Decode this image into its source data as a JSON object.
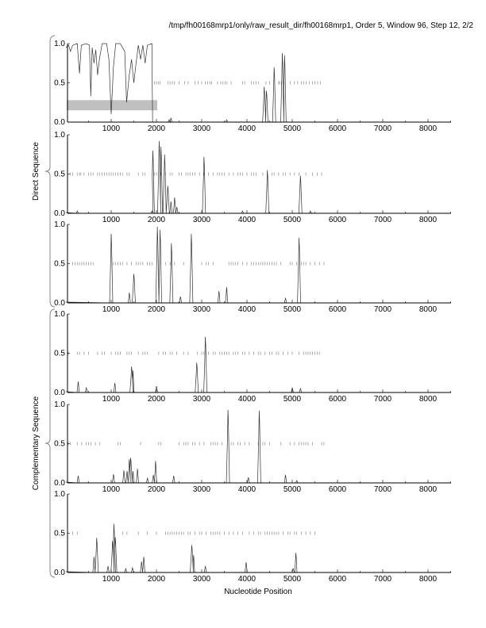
{
  "chart_data": {
    "type": "line",
    "title": "/tmp/fh00168mrp1/only/raw_result_dir/fh00168mrp1, Order 5, Window 96, Step 12, 2/2",
    "xlabel": "Nucleotide Position",
    "xlim": [
      0,
      8500
    ],
    "ylim": [
      0,
      1
    ],
    "x_ticks": [
      1000,
      2000,
      3000,
      4000,
      5000,
      6000,
      7000,
      8000
    ],
    "x_tick_labels": [
      "1000",
      "2000",
      "3000",
      "4000",
      "5000",
      "6000",
      "7000",
      "8000"
    ],
    "y_ticks": [
      0,
      0.5,
      1
    ],
    "y_tick_labels": [
      "0.0",
      "0.5",
      "1.0"
    ],
    "group_labels": [
      "Direct Sequence",
      "Complementary Sequence"
    ],
    "panels": [
      {
        "group": "Direct Sequence",
        "frame": 1,
        "profile": [
          [
            0,
            0.95
          ],
          [
            60,
            0.98
          ],
          [
            100,
            0.9
          ],
          [
            150,
            0.98
          ],
          [
            250,
            1.0
          ],
          [
            300,
            0.62
          ],
          [
            340,
            0.98
          ],
          [
            450,
            1.0
          ],
          [
            520,
            0.98
          ],
          [
            550,
            0.33
          ],
          [
            580,
            0.95
          ],
          [
            620,
            0.75
          ],
          [
            660,
            0.92
          ],
          [
            700,
            0.6
          ],
          [
            740,
            0.8
          ],
          [
            800,
            1.0
          ],
          [
            900,
            1.0
          ],
          [
            950,
            0.8
          ],
          [
            1000,
            0.1
          ],
          [
            1050,
            0.7
          ],
          [
            1100,
            1.0
          ],
          [
            1200,
            1.0
          ],
          [
            1300,
            0.9
          ],
          [
            1340,
            0.25
          ],
          [
            1400,
            0.6
          ],
          [
            1450,
            0.8
          ],
          [
            1500,
            0.5
          ],
          [
            1550,
            0.75
          ],
          [
            1600,
            0.98
          ],
          [
            1650,
            0.8
          ],
          [
            1700,
            0.98
          ],
          [
            1750,
            0.75
          ],
          [
            1800,
            0.98
          ],
          [
            1900,
            1.0
          ],
          [
            1915,
            0.0
          ]
        ],
        "peaks": [
          [
            2280,
            0.03
          ],
          [
            2320,
            0.05
          ],
          [
            3550,
            0.03
          ],
          [
            4380,
            0.45
          ],
          [
            4430,
            0.4
          ],
          [
            4600,
            0.7
          ],
          [
            4780,
            0.88
          ],
          [
            4830,
            0.85
          ]
        ],
        "start_marks": [
          1960,
          2000,
          2040,
          2080,
          2250,
          2300,
          2350,
          2400,
          2500,
          2620,
          2700,
          2850,
          2920,
          3000,
          3080,
          3130,
          3180,
          3220,
          3350,
          3420,
          3470,
          3520,
          3560,
          3650,
          3900,
          3950,
          4100,
          4150,
          4200,
          4260,
          4420,
          4500,
          4700,
          4720,
          4760,
          4820,
          4960,
          5050,
          5120,
          5200,
          5250,
          5310,
          5380,
          5450,
          5500,
          5560,
          5620
        ],
        "gene_bars": [
          [
            0,
            2000
          ]
        ]
      },
      {
        "group": "Direct Sequence",
        "frame": 2,
        "peaks": [
          [
            250,
            0.03
          ],
          [
            1900,
            0.03
          ],
          [
            1920,
            0.8
          ],
          [
            2060,
            0.92
          ],
          [
            2100,
            0.85
          ],
          [
            2180,
            0.75
          ],
          [
            2250,
            0.35
          ],
          [
            2320,
            0.15
          ],
          [
            2400,
            0.2
          ],
          [
            2450,
            0.08
          ],
          [
            3050,
            0.72
          ],
          [
            3900,
            0.03
          ],
          [
            4450,
            0.55
          ],
          [
            5180,
            0.48
          ],
          [
            5400,
            0.03
          ]
        ],
        "start_marks": [
          100,
          150,
          250,
          300,
          330,
          400,
          500,
          550,
          600,
          700,
          750,
          800,
          850,
          900,
          950,
          1000,
          1050,
          1100,
          1150,
          1200,
          1250,
          1350,
          1400,
          1600,
          1700,
          1750,
          1950,
          2000,
          2100,
          2200,
          2300,
          2350,
          2500,
          2550,
          2650,
          2700,
          2750,
          2800,
          2850,
          2950,
          3050,
          3150,
          3250,
          3350,
          3400,
          3450,
          3500,
          3600,
          3700,
          3800,
          3850,
          3900,
          4000,
          4100,
          4150,
          4200,
          4350,
          4450,
          4550,
          4600,
          4700,
          4800,
          4850,
          4950,
          5050,
          5150,
          5300,
          5450,
          5550,
          5650
        ]
      },
      {
        "group": "Direct Sequence",
        "frame": 3,
        "peaks": [
          [
            1000,
            0.88
          ],
          [
            1400,
            0.13
          ],
          [
            1500,
            0.37
          ],
          [
            2020,
            0.97
          ],
          [
            2080,
            0.93
          ],
          [
            2330,
            0.76
          ],
          [
            2530,
            0.08
          ],
          [
            2770,
            0.88
          ],
          [
            3380,
            0.15
          ],
          [
            3550,
            0.2
          ],
          [
            4850,
            0.06
          ],
          [
            5150,
            0.83
          ]
        ],
        "start_marks": [
          150,
          200,
          250,
          300,
          350,
          400,
          450,
          500,
          550,
          600,
          1050,
          1100,
          1150,
          1200,
          1250,
          1350,
          1450,
          1550,
          1600,
          1650,
          1700,
          1800,
          1850,
          1900,
          2100,
          2200,
          2300,
          2400,
          2600,
          3000,
          3100,
          3150,
          3250,
          3600,
          3650,
          3700,
          3750,
          3800,
          3900,
          4000,
          4100,
          4150,
          4200,
          4250,
          4300,
          4350,
          4400,
          4450,
          4500,
          4550,
          4600,
          4650,
          4750,
          4950,
          5000,
          5100,
          5200,
          5250,
          5300,
          5400,
          5500,
          5600,
          5700
        ]
      },
      {
        "group": "Complementary Sequence",
        "frame": 1,
        "peaks": [
          [
            270,
            0.14
          ],
          [
            450,
            0.06
          ],
          [
            1080,
            0.12
          ],
          [
            1450,
            0.33
          ],
          [
            1480,
            0.28
          ],
          [
            2000,
            0.08
          ],
          [
            2890,
            0.38
          ],
          [
            3080,
            0.71
          ],
          [
            5000,
            0.06
          ],
          [
            5180,
            0.05
          ]
        ],
        "start_marks": [
          50,
          250,
          300,
          400,
          500,
          700,
          800,
          850,
          1000,
          1100,
          1150,
          1200,
          1350,
          1400,
          1450,
          1600,
          1700,
          1750,
          1800,
          2050,
          2150,
          2200,
          2300,
          2350,
          2450,
          2600,
          2700,
          2900,
          3000,
          3050,
          3150,
          3250,
          3300,
          3400,
          3450,
          3500,
          3550,
          3600,
          3700,
          3750,
          3800,
          3900,
          3950,
          4050,
          4150,
          4250,
          4300,
          4400,
          4500,
          4550,
          4650,
          4700,
          4800,
          4900,
          5000,
          5150,
          5250,
          5300,
          5350,
          5400,
          5450,
          5500,
          5550,
          5600
        ]
      },
      {
        "group": "Complementary Sequence",
        "frame": 2,
        "peaks": [
          [
            270,
            0.09
          ],
          [
            1050,
            0.11
          ],
          [
            1280,
            0.16
          ],
          [
            1350,
            0.15
          ],
          [
            1400,
            0.3
          ],
          [
            1430,
            0.32
          ],
          [
            1480,
            0.15
          ],
          [
            1580,
            0.18
          ],
          [
            1800,
            0.06
          ],
          [
            1930,
            0.1
          ],
          [
            1980,
            0.28
          ],
          [
            2380,
            0.09
          ],
          [
            3580,
            0.93
          ],
          [
            4030,
            0.07
          ],
          [
            4270,
            0.92
          ],
          [
            4850,
            0.1
          ],
          [
            5100,
            0.03
          ]
        ],
        "start_marks": [
          50,
          100,
          250,
          350,
          450,
          500,
          550,
          650,
          750,
          1150,
          1200,
          1650,
          2050,
          2100,
          2500,
          2600,
          2650,
          2700,
          2800,
          2850,
          2950,
          3050,
          3200,
          3250,
          3300,
          3350,
          3450,
          3650,
          3700,
          3800,
          3850,
          3950,
          4050,
          4250,
          4350,
          4400,
          4500,
          4750,
          4950,
          5050,
          5150,
          5200,
          5250,
          5300,
          5350,
          5450,
          5650,
          5700
        ]
      },
      {
        "group": "Complementary Sequence",
        "frame": 3,
        "peaks": [
          [
            620,
            0.2
          ],
          [
            680,
            0.44
          ],
          [
            930,
            0.08
          ],
          [
            1030,
            0.4
          ],
          [
            1060,
            0.62
          ],
          [
            1090,
            0.45
          ],
          [
            1320,
            0.05
          ],
          [
            1470,
            0.06
          ],
          [
            1670,
            0.14
          ],
          [
            1720,
            0.2
          ],
          [
            2780,
            0.35
          ],
          [
            2820,
            0.22
          ],
          [
            3080,
            0.08
          ],
          [
            3980,
            0.13
          ],
          [
            5020,
            0.05
          ],
          [
            5080,
            0.25
          ]
        ],
        "start_marks": [
          150,
          250,
          1250,
          1350,
          1600,
          1800,
          2000,
          2200,
          2250,
          2300,
          2350,
          2400,
          2450,
          2500,
          2550,
          2600,
          2700,
          2750,
          2850,
          2950,
          3000,
          3100,
          3200,
          3250,
          3300,
          3350,
          3400,
          3500,
          3600,
          3700,
          3800,
          3900,
          4050,
          4150,
          4250,
          4300,
          4400,
          4450,
          4500,
          4550,
          4600,
          4650,
          4700,
          4800,
          4900,
          4950,
          5050,
          5100,
          5200,
          5300,
          5400,
          5500
        ]
      }
    ]
  }
}
